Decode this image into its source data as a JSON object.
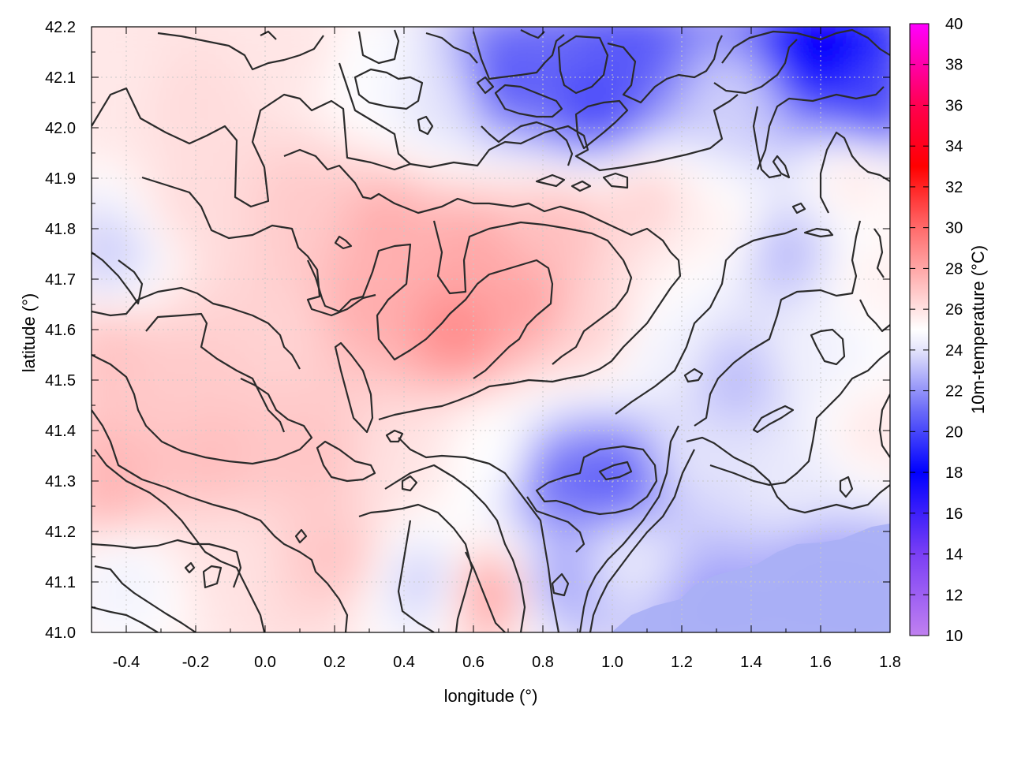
{
  "chart_data": {
    "type": "heatmap",
    "title": "",
    "xlabel": "longitude (°)",
    "ylabel": "latitude (°)",
    "colorbar_label": "10m-temperature (°C)",
    "xlim": [
      -0.5,
      1.8
    ],
    "ylim": [
      41.0,
      42.2
    ],
    "clim": [
      10,
      40
    ],
    "x_ticks": [
      "-0.4",
      "-0.2",
      "0.0",
      "0.2",
      "0.4",
      "0.6",
      "0.8",
      "1.0",
      "1.2",
      "1.4",
      "1.6",
      "1.8"
    ],
    "x_tick_values": [
      -0.4,
      -0.2,
      0.0,
      0.2,
      0.4,
      0.6,
      0.8,
      1.0,
      1.2,
      1.4,
      1.6,
      1.8
    ],
    "y_ticks": [
      "41.0",
      "41.1",
      "41.2",
      "41.3",
      "41.4",
      "41.5",
      "41.6",
      "41.7",
      "41.8",
      "41.9",
      "42.0",
      "42.1",
      "42.2"
    ],
    "y_tick_values": [
      41.0,
      41.1,
      41.2,
      41.3,
      41.4,
      41.5,
      41.6,
      41.7,
      41.8,
      41.9,
      42.0,
      42.1,
      42.2
    ],
    "colorbar_ticks": [
      "10",
      "12",
      "14",
      "16",
      "18",
      "20",
      "22",
      "24",
      "26",
      "28",
      "30",
      "32",
      "34",
      "36",
      "38",
      "40"
    ],
    "colorbar_tick_values": [
      10,
      12,
      14,
      16,
      18,
      20,
      22,
      24,
      26,
      28,
      30,
      32,
      34,
      36,
      38,
      40
    ],
    "colormap": [
      {
        "value": 10,
        "color": "#c080f0"
      },
      {
        "value": 14,
        "color": "#7a3ff5"
      },
      {
        "value": 18,
        "color": "#0000ff"
      },
      {
        "value": 21,
        "color": "#6a6af8"
      },
      {
        "value": 24,
        "color": "#e4e4fb"
      },
      {
        "value": 25,
        "color": "#ffffff"
      },
      {
        "value": 26,
        "color": "#ffe2e2"
      },
      {
        "value": 30,
        "color": "#ff6a6a"
      },
      {
        "value": 33,
        "color": "#ff0000"
      },
      {
        "value": 36,
        "color": "#ff0050"
      },
      {
        "value": 40,
        "color": "#ff00ff"
      }
    ],
    "field_samples": [
      {
        "lon": -0.45,
        "lat": 42.1,
        "t": 25.8
      },
      {
        "lon": -0.2,
        "lat": 42.05,
        "t": 26.2
      },
      {
        "lon": 0.1,
        "lat": 42.15,
        "t": 25.9
      },
      {
        "lon": 0.3,
        "lat": 42.1,
        "t": 24.8
      },
      {
        "lon": 0.5,
        "lat": 42.05,
        "t": 24.0
      },
      {
        "lon": 0.7,
        "lat": 42.1,
        "t": 20.5
      },
      {
        "lon": 0.95,
        "lat": 42.05,
        "t": 20.0
      },
      {
        "lon": 1.05,
        "lat": 42.15,
        "t": 20.5
      },
      {
        "lon": 1.35,
        "lat": 42.05,
        "t": 23.5
      },
      {
        "lon": 1.6,
        "lat": 42.15,
        "t": 17.5
      },
      {
        "lon": 1.75,
        "lat": 42.05,
        "t": 20.0
      },
      {
        "lon": 1.7,
        "lat": 41.9,
        "t": 25.8
      },
      {
        "lon": -0.45,
        "lat": 41.75,
        "t": 23.5
      },
      {
        "lon": -0.2,
        "lat": 41.85,
        "t": 26.2
      },
      {
        "lon": 0.1,
        "lat": 41.85,
        "t": 26.8
      },
      {
        "lon": 0.35,
        "lat": 41.8,
        "t": 27.8
      },
      {
        "lon": 0.6,
        "lat": 41.75,
        "t": 28.0
      },
      {
        "lon": 0.85,
        "lat": 41.8,
        "t": 27.2
      },
      {
        "lon": 1.1,
        "lat": 41.85,
        "t": 26.5
      },
      {
        "lon": 1.3,
        "lat": 41.8,
        "t": 25.5
      },
      {
        "lon": 1.5,
        "lat": 41.75,
        "t": 23.0
      },
      {
        "lon": 1.75,
        "lat": 41.7,
        "t": 25.5
      },
      {
        "lon": -0.45,
        "lat": 41.55,
        "t": 27.0
      },
      {
        "lon": -0.2,
        "lat": 41.5,
        "t": 26.8
      },
      {
        "lon": 0.05,
        "lat": 41.6,
        "t": 26.5
      },
      {
        "lon": 0.3,
        "lat": 41.65,
        "t": 27.8
      },
      {
        "lon": 0.55,
        "lat": 41.6,
        "t": 29.0
      },
      {
        "lon": 0.75,
        "lat": 41.65,
        "t": 28.2
      },
      {
        "lon": 0.95,
        "lat": 41.6,
        "t": 26.5
      },
      {
        "lon": 1.15,
        "lat": 41.55,
        "t": 24.5
      },
      {
        "lon": 1.35,
        "lat": 41.5,
        "t": 23.0
      },
      {
        "lon": 1.6,
        "lat": 41.55,
        "t": 24.5
      },
      {
        "lon": 1.75,
        "lat": 41.4,
        "t": 25.8
      },
      {
        "lon": -0.45,
        "lat": 41.3,
        "t": 27.5
      },
      {
        "lon": -0.15,
        "lat": 41.35,
        "t": 27.2
      },
      {
        "lon": 0.15,
        "lat": 41.35,
        "t": 27.0
      },
      {
        "lon": 0.4,
        "lat": 41.35,
        "t": 26.0
      },
      {
        "lon": 0.65,
        "lat": 41.35,
        "t": 25.0
      },
      {
        "lon": 0.85,
        "lat": 41.3,
        "t": 21.0
      },
      {
        "lon": 1.0,
        "lat": 41.3,
        "t": 20.5
      },
      {
        "lon": 1.25,
        "lat": 41.35,
        "t": 24.0
      },
      {
        "lon": 1.5,
        "lat": 41.3,
        "t": 24.2
      },
      {
        "lon": -0.4,
        "lat": 41.1,
        "t": 24.5
      },
      {
        "lon": -0.1,
        "lat": 41.15,
        "t": 26.0
      },
      {
        "lon": 0.2,
        "lat": 41.15,
        "t": 27.0
      },
      {
        "lon": 0.45,
        "lat": 41.1,
        "t": 23.5
      },
      {
        "lon": 0.65,
        "lat": 41.08,
        "t": 28.0
      },
      {
        "lon": 0.85,
        "lat": 41.1,
        "t": 22.5
      },
      {
        "lon": 1.05,
        "lat": 41.15,
        "t": 24.2
      },
      {
        "lon": 1.3,
        "lat": 41.05,
        "t": 22.2
      },
      {
        "lon": 1.6,
        "lat": 41.1,
        "t": 22.2
      },
      {
        "lon": 1.75,
        "lat": 41.05,
        "t": 22.2
      }
    ],
    "grid": true,
    "legend": "colorbar-right",
    "contours": true
  }
}
